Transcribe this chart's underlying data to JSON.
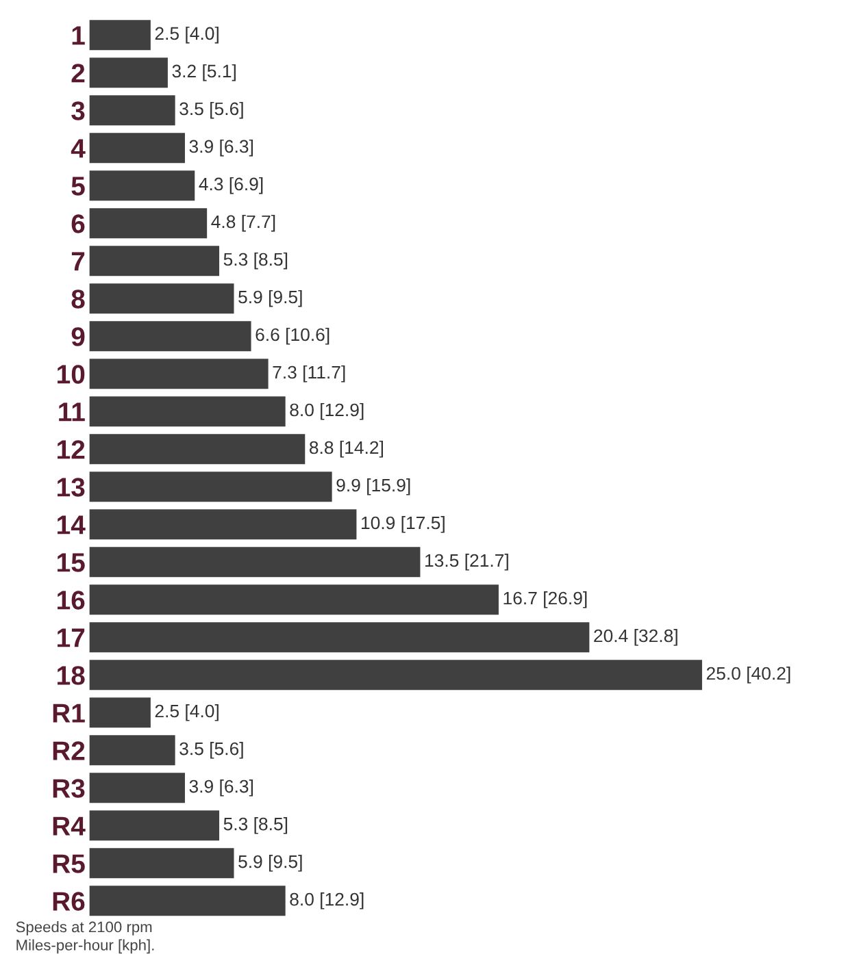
{
  "chart_data": {
    "type": "bar",
    "orientation": "horizontal",
    "categories": [
      "1",
      "2",
      "3",
      "4",
      "5",
      "6",
      "7",
      "8",
      "9",
      "10",
      "11",
      "12",
      "13",
      "14",
      "15",
      "16",
      "17",
      "18",
      "R1",
      "R2",
      "R3",
      "R4",
      "R5",
      "R6"
    ],
    "values": [
      2.5,
      3.2,
      3.5,
      3.9,
      4.3,
      4.8,
      5.3,
      5.9,
      6.6,
      7.3,
      8.0,
      8.8,
      9.9,
      10.9,
      13.5,
      16.7,
      20.4,
      25.0,
      2.5,
      3.5,
      3.9,
      5.3,
      5.9,
      8.0
    ],
    "value_labels": [
      "2.5 [4.0]",
      "3.2 [5.1]",
      "3.5 [5.6]",
      "3.9 [6.3]",
      "4.3 [6.9]",
      "4.8 [7.7]",
      "5.3 [8.5]",
      "5.9 [9.5]",
      "6.6 [10.6]",
      "7.3 [11.7]",
      "8.0 [12.9]",
      "8.8 [14.2]",
      "9.9 [15.9]",
      "10.9 [17.5]",
      "13.5 [21.7]",
      "16.7 [26.9]",
      "20.4 [32.8]",
      "25.0 [40.2]",
      "2.5 [4.0]",
      "3.5 [5.6]",
      "3.9 [6.3]",
      "5.3 [8.5]",
      "5.9 [9.5]",
      "8.0 [12.9]"
    ],
    "color": "#404040",
    "annotations": [
      "Speeds at 2100 rpm",
      "Miles-per-hour [kph]."
    ]
  }
}
